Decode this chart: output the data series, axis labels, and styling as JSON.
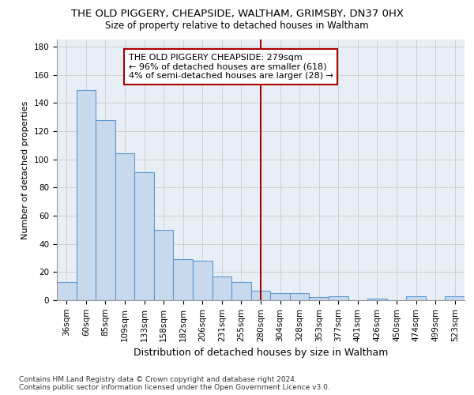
{
  "title1": "THE OLD PIGGERY, CHEAPSIDE, WALTHAM, GRIMSBY, DN37 0HX",
  "title2": "Size of property relative to detached houses in Waltham",
  "xlabel": "Distribution of detached houses by size in Waltham",
  "ylabel": "Number of detached properties",
  "categories": [
    "36sqm",
    "60sqm",
    "85sqm",
    "109sqm",
    "133sqm",
    "158sqm",
    "182sqm",
    "206sqm",
    "231sqm",
    "255sqm",
    "280sqm",
    "304sqm",
    "328sqm",
    "353sqm",
    "377sqm",
    "401sqm",
    "426sqm",
    "450sqm",
    "474sqm",
    "499sqm",
    "523sqm"
  ],
  "values": [
    13,
    149,
    128,
    104,
    91,
    50,
    29,
    28,
    17,
    13,
    7,
    5,
    5,
    2,
    3,
    0,
    1,
    0,
    3,
    0,
    3
  ],
  "bar_color": "#c8d8ed",
  "bar_edge_color": "#5b9bd5",
  "vline_x_index": 10,
  "vline_color": "#aa0000",
  "annotation_text": "THE OLD PIGGERY CHEAPSIDE: 279sqm\n← 96% of detached houses are smaller (618)\n4% of semi-detached houses are larger (28) →",
  "annotation_box_color": "#ffffff",
  "annotation_box_edge_color": "#aa0000",
  "ylim": [
    0,
    185
  ],
  "yticks": [
    0,
    20,
    40,
    60,
    80,
    100,
    120,
    140,
    160,
    180
  ],
  "grid_color": "#cccccc",
  "background_color": "#e8eef5",
  "footer_text": "Contains HM Land Registry data © Crown copyright and database right 2024.\nContains public sector information licensed under the Open Government Licence v3.0.",
  "title_fontsize": 9.5,
  "subtitle_fontsize": 8.5,
  "ylabel_fontsize": 8,
  "xlabel_fontsize": 9,
  "tick_fontsize": 7.5,
  "annotation_fontsize": 8,
  "footer_fontsize": 6.5
}
